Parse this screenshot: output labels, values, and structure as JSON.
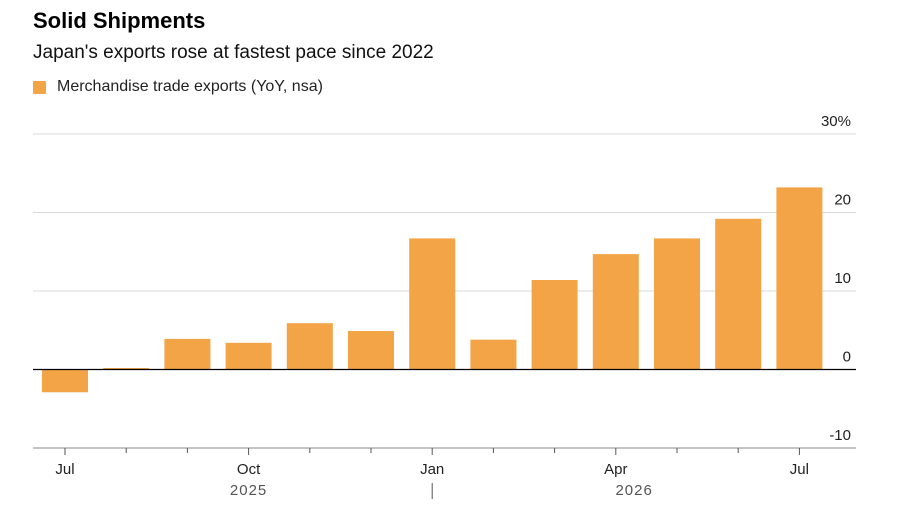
{
  "title": "Solid Shipments",
  "subtitle": "Japan's exports rose at fastest pace since 2022",
  "colors": {
    "bar": "#f2a446",
    "grid": "#d9d9d9",
    "zero": "#000000",
    "text": "#222222",
    "year_label": "#555555"
  },
  "chart_data": {
    "type": "bar",
    "series": [
      {
        "name": "Merchandise trade exports (YoY, nsa)",
        "values": [
          -2.9,
          0.1,
          3.9,
          3.4,
          5.9,
          4.9,
          16.7,
          3.8,
          11.4,
          14.7,
          16.7,
          19.2,
          23.2
        ]
      }
    ],
    "categories": [
      "2025-07",
      "2025-08",
      "2025-09",
      "2025-10",
      "2025-11",
      "2025-12",
      "2026-01",
      "2026-02",
      "2026-03",
      "2026-04",
      "2026-05",
      "2026-06",
      "2026-07"
    ],
    "x_tick_labels": [
      {
        "index": 0,
        "label": "Jul"
      },
      {
        "index": 3,
        "label": "Oct"
      },
      {
        "index": 6,
        "label": "Jan"
      },
      {
        "index": 9,
        "label": "Apr"
      },
      {
        "index": 12,
        "label": "Jul"
      }
    ],
    "year_labels": [
      {
        "center": 3.0,
        "label": "2025"
      },
      {
        "center": 9.3,
        "label": "2026"
      }
    ],
    "year_divider_index": 6,
    "y_ticks": [
      {
        "value": 30,
        "label": "30%"
      },
      {
        "value": 20,
        "label": "20"
      },
      {
        "value": 10,
        "label": "10"
      },
      {
        "value": 0,
        "label": "0"
      },
      {
        "value": -10,
        "label": "-10"
      }
    ],
    "ylim": [
      -10,
      30
    ],
    "grid": true,
    "y_axis_position": "right",
    "legend_position": "top-left"
  }
}
